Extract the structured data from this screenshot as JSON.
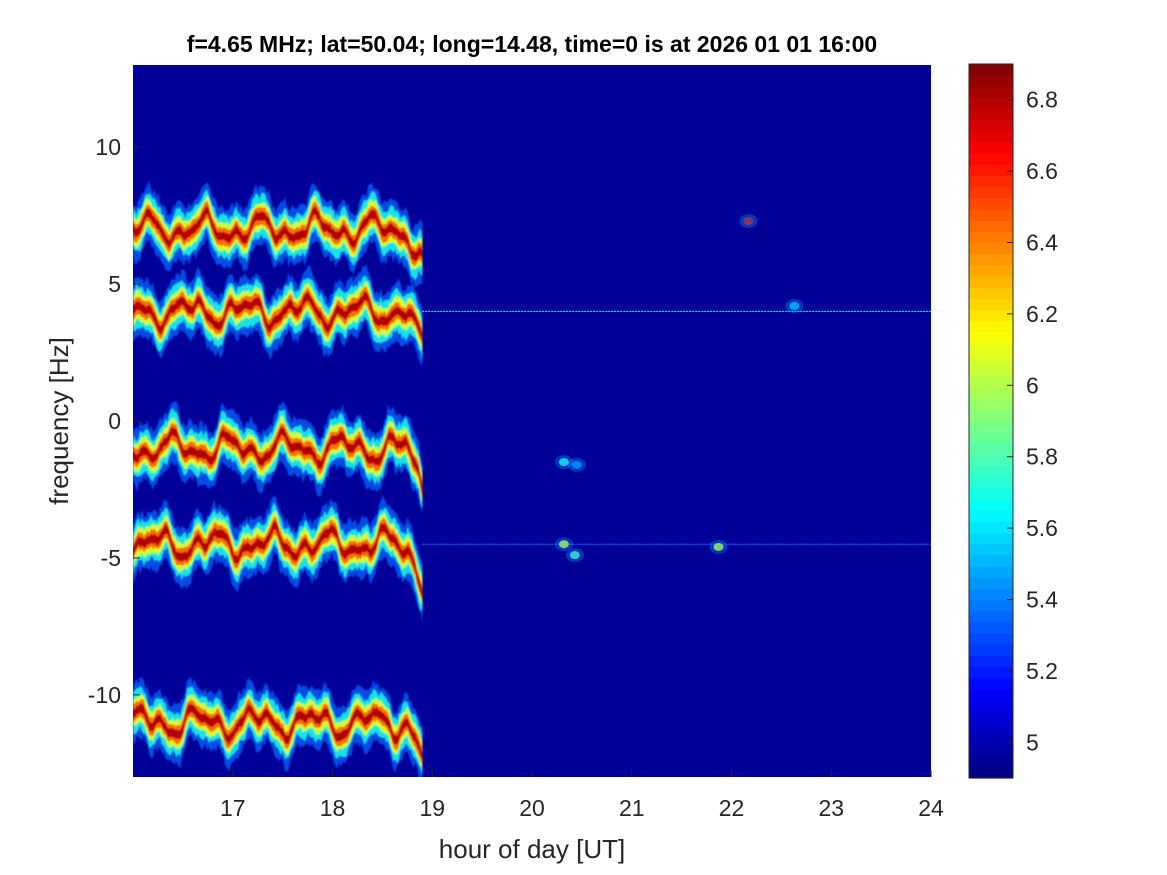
{
  "chart_data": {
    "type": "heatmap",
    "title": "f=4.65 MHz;  lat=50.04; long=14.48, time=0 is at 2026 01 01 16:00",
    "xlabel": "hour of day [UT]",
    "ylabel": "frequency [Hz]",
    "xlim": [
      16.0,
      24.0
    ],
    "ylim": [
      -13.0,
      13.0
    ],
    "xticks": [
      17,
      18,
      19,
      20,
      21,
      22,
      23,
      24
    ],
    "yticks": [
      -10,
      -5,
      0,
      5,
      10
    ],
    "colorbar": {
      "range": [
        4.9,
        6.9
      ],
      "ticks": [
        "5",
        "5.2",
        "5.4",
        "5.6",
        "5.8",
        "6",
        "6.2",
        "6.4",
        "6.6",
        "6.8"
      ],
      "colormap": "jet"
    },
    "background_level": 4.95,
    "doppler_traces": [
      {
        "name": "trace near +7 Hz",
        "x_start": 16.0,
        "x_end": 18.9,
        "center_hz": 7.0
      },
      {
        "name": "trace near +4 Hz",
        "x_start": 16.0,
        "x_end": 18.9,
        "center_hz": 4.0
      },
      {
        "name": "trace near -1 Hz",
        "x_start": 16.0,
        "x_end": 18.9,
        "center_hz": -1.0
      },
      {
        "name": "trace near -4.5 Hz",
        "x_start": 16.0,
        "x_end": 18.9,
        "center_hz": -4.5
      },
      {
        "name": "trace near -11 Hz",
        "x_start": 16.0,
        "x_end": 18.9,
        "center_hz": -11.0
      }
    ],
    "constant_lines": [
      {
        "y": 4.0,
        "x_start": 18.9,
        "x_end": 24.0,
        "level": 5.6
      },
      {
        "y": -4.5,
        "x_start": 18.9,
        "x_end": 24.0,
        "level": 5.35
      }
    ],
    "spots": [
      {
        "x": 22.17,
        "y": 7.3,
        "level": 6.7
      },
      {
        "x": 20.45,
        "y": -1.6,
        "level": 5.4
      },
      {
        "x": 20.32,
        "y": -4.5,
        "level": 6.1
      },
      {
        "x": 20.43,
        "y": -4.9,
        "level": 5.8
      },
      {
        "x": 21.87,
        "y": -4.6,
        "level": 6.1
      },
      {
        "x": 20.32,
        "y": -1.5,
        "level": 5.7
      },
      {
        "x": 22.63,
        "y": 4.2,
        "level": 5.5
      }
    ]
  },
  "colors": {
    "background": "#ffffff",
    "axis": "#262626",
    "plot_background": "#0d1f99"
  }
}
